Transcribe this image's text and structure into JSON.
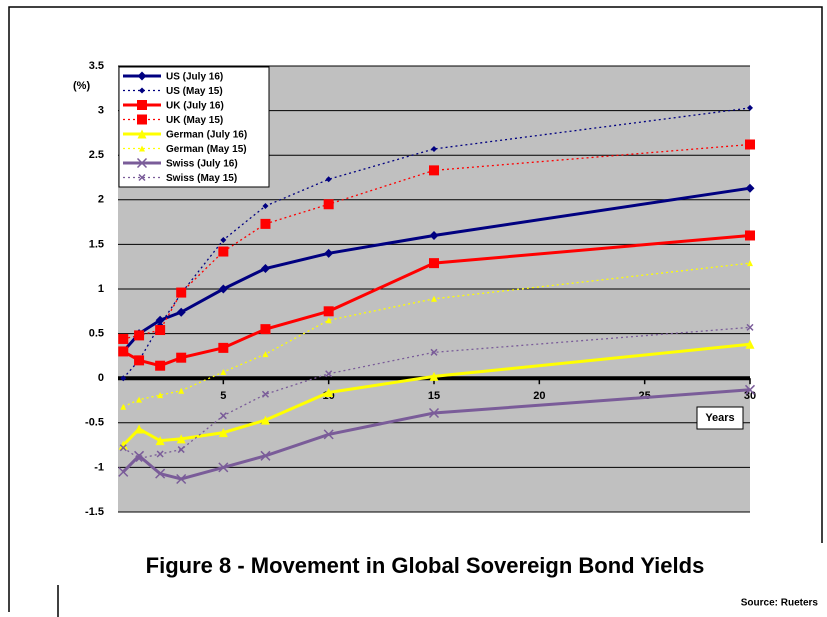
{
  "chart_data": {
    "type": "line",
    "title": "Figure 8 - Movement in Global Sovereign Bond Yields",
    "source": "Source: Rueters",
    "y_label": "(%)",
    "x_label": "Years",
    "x": [
      0.25,
      1,
      2,
      3,
      5,
      7,
      10,
      15,
      30
    ],
    "xlim": [
      0,
      30
    ],
    "xticks": [
      5,
      10,
      15,
      20,
      25,
      30
    ],
    "ylim": [
      -1.5,
      3.5
    ],
    "yticks": [
      -1.5,
      -1,
      -0.5,
      0,
      0.5,
      1,
      1.5,
      2,
      2.5,
      3,
      3.5
    ],
    "grid": true,
    "legend": "upper left",
    "series": [
      {
        "name": "US (July 16)",
        "color": "#000080",
        "marker": "diamond",
        "style": "solid",
        "values": [
          0.3,
          0.5,
          0.65,
          0.74,
          1.0,
          1.23,
          1.4,
          1.6,
          2.13
        ]
      },
      {
        "name": "US (May 15)",
        "color": "#000080",
        "marker": "diamond",
        "style": "dotted",
        "values": [
          0.0,
          0.2,
          0.6,
          0.95,
          1.55,
          1.93,
          2.23,
          2.57,
          3.03
        ]
      },
      {
        "name": "UK (July 16)",
        "color": "#ff0000",
        "marker": "square",
        "style": "solid",
        "values": [
          0.3,
          0.2,
          0.14,
          0.23,
          0.34,
          0.55,
          0.75,
          1.29,
          1.6
        ]
      },
      {
        "name": "UK (May 15)",
        "color": "#ff0000",
        "marker": "square",
        "style": "dotted",
        "values": [
          0.44,
          0.48,
          0.54,
          0.96,
          1.42,
          1.73,
          1.95,
          2.33,
          2.62
        ]
      },
      {
        "name": "German (July 16)",
        "color": "#ffff00",
        "marker": "triangle",
        "style": "solid",
        "values": [
          -0.75,
          -0.57,
          -0.7,
          -0.68,
          -0.61,
          -0.47,
          -0.16,
          0.02,
          0.38
        ]
      },
      {
        "name": "German (May 15)",
        "color": "#ffff00",
        "marker": "triangle",
        "style": "dotted",
        "values": [
          -0.32,
          -0.24,
          -0.19,
          -0.14,
          0.07,
          0.27,
          0.65,
          0.89,
          1.29
        ]
      },
      {
        "name": "Swiss (July 16)",
        "color": "#7a5c99",
        "marker": "x",
        "style": "solid",
        "values": [
          -1.05,
          -0.87,
          -1.07,
          -1.13,
          -1.0,
          -0.87,
          -0.63,
          -0.39,
          -0.13
        ]
      },
      {
        "name": "Swiss (May 15)",
        "color": "#7a5c99",
        "marker": "x",
        "style": "dotted",
        "values": [
          -0.78,
          -0.9,
          -0.85,
          -0.8,
          -0.42,
          -0.18,
          0.05,
          0.29,
          0.57
        ]
      }
    ]
  }
}
